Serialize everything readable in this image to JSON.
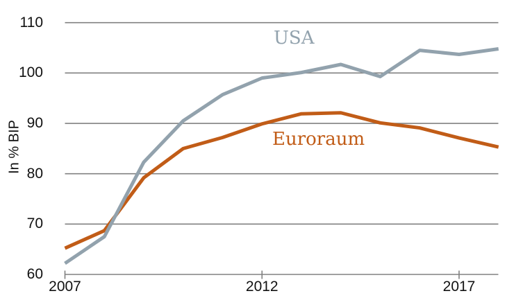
{
  "chart": {
    "ylabel": "In % BIP",
    "usa_label": "USA",
    "euro_label": "Euroraum",
    "colors": {
      "usa": "#92a2ad",
      "euro": "#c15c17",
      "grid": "#808080",
      "text": "#111111"
    },
    "y_ticks": [
      110,
      100,
      90,
      80,
      70,
      60
    ],
    "x_ticks": [
      2007,
      2012,
      2017
    ]
  },
  "chart_data": {
    "type": "line",
    "x": [
      2007,
      2008,
      2009,
      2010,
      2011,
      2012,
      2013,
      2014,
      2015,
      2016,
      2017,
      2018
    ],
    "series": [
      {
        "name": "USA",
        "color": "#92a2ad",
        "values": [
          62.2,
          67.5,
          82.3,
          90.5,
          95.7,
          99.0,
          100.1,
          101.7,
          99.3,
          104.5,
          103.7,
          104.8
        ]
      },
      {
        "name": "Euroraum",
        "color": "#c15c17",
        "values": [
          65.2,
          68.7,
          79.2,
          85.0,
          87.2,
          89.9,
          91.9,
          92.1,
          90.1,
          89.1,
          87.1,
          85.3
        ]
      }
    ],
    "title": "",
    "xlabel": "",
    "ylabel": "In % BIP",
    "ylim": [
      60,
      110
    ],
    "xlim": [
      2007,
      2018
    ],
    "grid": "horizontal",
    "legend": "inline-labels"
  }
}
